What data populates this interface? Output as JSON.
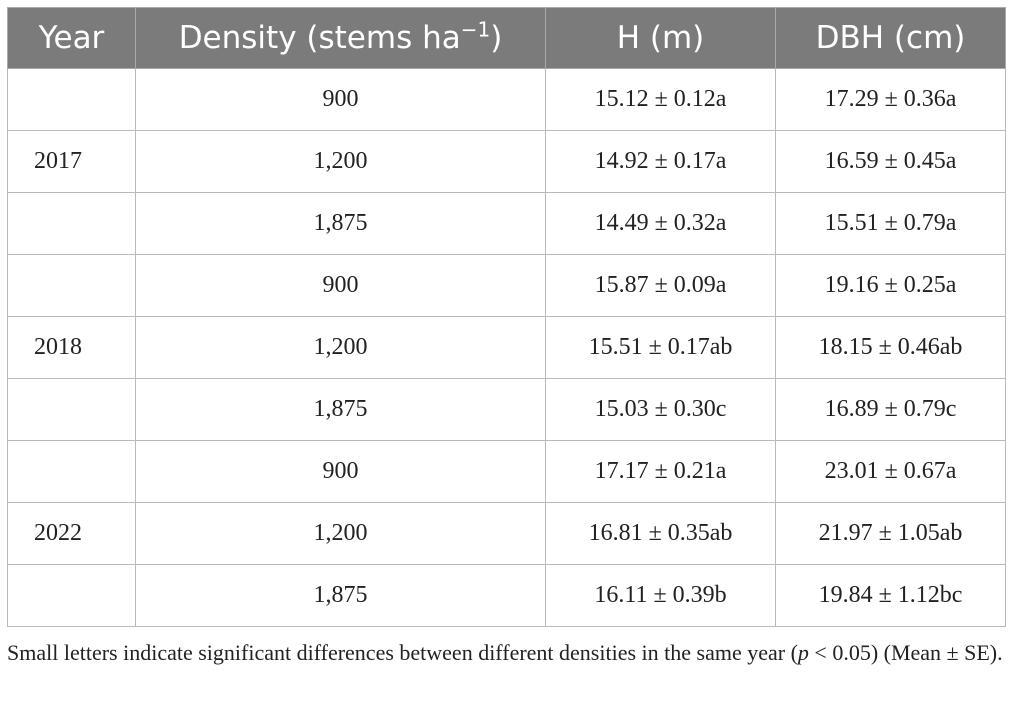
{
  "table": {
    "headers": {
      "year": "Year",
      "density_prefix": "Density (stems ha",
      "density_sup": "−1",
      "density_suffix": ")",
      "h": "H (m)",
      "dbh": "DBH (cm)"
    },
    "rows": [
      {
        "year": "",
        "density": "900",
        "h": "15.12 ± 0.12a",
        "dbh": "17.29 ± 0.36a"
      },
      {
        "year": "2017",
        "density": "1,200",
        "h": "14.92 ± 0.17a",
        "dbh": "16.59 ± 0.45a"
      },
      {
        "year": "",
        "density": "1,875",
        "h": "14.49 ± 0.32a",
        "dbh": "15.51 ± 0.79a"
      },
      {
        "year": "",
        "density": "900",
        "h": "15.87 ± 0.09a",
        "dbh": "19.16 ± 0.25a"
      },
      {
        "year": "2018",
        "density": "1,200",
        "h": "15.51 ± 0.17ab",
        "dbh": "18.15 ± 0.46ab"
      },
      {
        "year": "",
        "density": "1,875",
        "h": "15.03 ± 0.30c",
        "dbh": "16.89 ± 0.79c"
      },
      {
        "year": "",
        "density": "900",
        "h": "17.17 ± 0.21a",
        "dbh": "23.01 ± 0.67a"
      },
      {
        "year": "2022",
        "density": "1,200",
        "h": "16.81 ± 0.35ab",
        "dbh": "21.97 ± 1.05ab"
      },
      {
        "year": "",
        "density": "1,875",
        "h": "16.11 ± 0.39b",
        "dbh": "19.84 ± 1.12bc"
      }
    ]
  },
  "footnote": {
    "text_before": "Small letters indicate significant differences between different densities in the same year (",
    "p_symbol": "p",
    "text_after": " < 0.05) (Mean ± SE)."
  },
  "colors": {
    "header_bg": "#7b7b7b",
    "header_text": "#ffffff",
    "grid": "#b9b9b9"
  }
}
